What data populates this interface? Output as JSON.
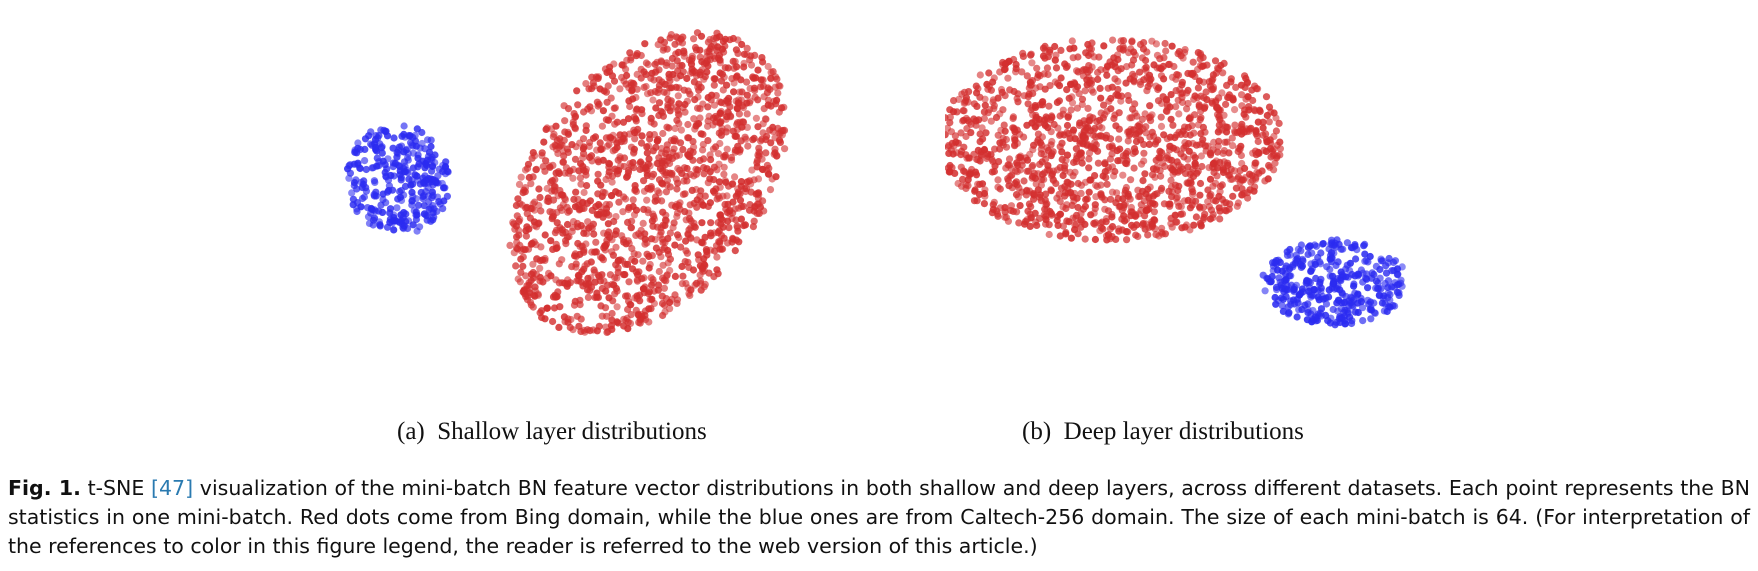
{
  "figure": {
    "subfigures": [
      {
        "label": "(a)",
        "title": "Shallow layer distributions"
      },
      {
        "label": "(b)",
        "title": "Deep layer distributions"
      }
    ],
    "caption": {
      "fig_label": "Fig. 1.",
      "pre_ref": " t-SNE ",
      "ref": "[47]",
      "post_ref": " visualization of the mini-batch BN feature vector distributions in both shallow and deep layers, across different datasets. Each point represents the BN statistics in one mini-batch. Red dots come from Bing domain, while the blue ones are from Caltech-256 domain. The size of each mini-batch is 64. (For interpretation of the references to color in this figure legend, the reader is referred to the web version of this article.)"
    }
  },
  "chart_data": [
    {
      "type": "scatter",
      "axes": "hidden",
      "grid": false,
      "title": "",
      "series": [
        {
          "name": "",
          "color": "#d32f2f",
          "cluster": {
            "shape": "ellipse",
            "center": [
              0.63,
              0.5
            ],
            "radii": [
              0.22,
              0.52
            ],
            "rotation_deg": 38,
            "count": 1500
          }
        },
        {
          "name": "",
          "color": "#2b2bf0",
          "cluster": {
            "shape": "ellipse",
            "center": [
              0.15,
              0.49
            ],
            "radii": [
              0.1,
              0.17
            ],
            "rotation_deg": -10,
            "count": 300
          }
        }
      ]
    },
    {
      "type": "scatter",
      "axes": "hidden",
      "grid": false,
      "title": "",
      "series": [
        {
          "name": "",
          "color": "#d32f2f",
          "cluster": {
            "shape": "ellipse",
            "center": [
              0.32,
              0.37
            ],
            "radii": [
              0.33,
              0.31
            ],
            "rotation_deg": 0,
            "count": 1400
          }
        },
        {
          "name": "",
          "color": "#2b2bf0",
          "cluster": {
            "shape": "ellipse",
            "center": [
              0.75,
              0.8
            ],
            "radii": [
              0.14,
              0.13
            ],
            "rotation_deg": 0,
            "count": 360
          }
        }
      ]
    }
  ]
}
